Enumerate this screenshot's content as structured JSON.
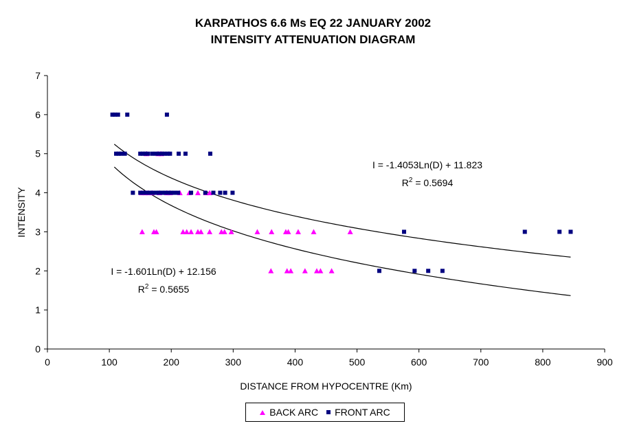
{
  "chart_data": {
    "type": "scatter",
    "title": "KARPATHOS 6.6 Ms EQ 22 JANUARY 2002",
    "subtitle": "INTENSITY ATTENUATION DIAGRAM",
    "xlabel": "DISTANCE FROM HYPOCENTRE (Km)",
    "ylabel": "INTENSITY",
    "xlim": [
      0,
      900
    ],
    "ylim": [
      0,
      7
    ],
    "xticks": [
      0,
      100,
      200,
      300,
      400,
      500,
      600,
      700,
      800,
      900
    ],
    "yticks": [
      0,
      1,
      2,
      3,
      4,
      5,
      6,
      7
    ],
    "grid": false,
    "legend_position": "bottom",
    "series": [
      {
        "name": "BACK ARC",
        "marker": "triangle",
        "color": "#ff00ff",
        "points": [
          [
            153,
            3
          ],
          [
            172,
            3
          ],
          [
            176,
            3
          ],
          [
            219,
            3
          ],
          [
            225,
            3
          ],
          [
            232,
            3
          ],
          [
            243,
            3
          ],
          [
            248,
            3
          ],
          [
            262,
            3
          ],
          [
            281,
            3
          ],
          [
            286,
            3
          ],
          [
            297,
            3
          ],
          [
            339,
            3
          ],
          [
            362,
            3
          ],
          [
            385,
            3
          ],
          [
            389,
            3
          ],
          [
            405,
            3
          ],
          [
            430,
            3
          ],
          [
            489,
            3
          ],
          [
            361,
            2
          ],
          [
            387,
            2
          ],
          [
            393,
            2
          ],
          [
            416,
            2
          ],
          [
            435,
            2
          ],
          [
            441,
            2
          ],
          [
            459,
            2
          ],
          [
            152,
            4
          ],
          [
            158,
            4
          ],
          [
            163,
            4
          ],
          [
            169,
            4
          ],
          [
            181,
            4
          ],
          [
            193,
            4
          ],
          [
            198,
            4
          ],
          [
            214,
            4
          ],
          [
            229,
            4
          ],
          [
            243,
            4
          ],
          [
            256,
            4
          ],
          [
            262,
            4
          ],
          [
            160,
            5
          ],
          [
            179,
            5
          ],
          [
            184,
            5
          ]
        ]
      },
      {
        "name": "FRONT ARC",
        "marker": "square",
        "color": "#000080",
        "points": [
          [
            105,
            6
          ],
          [
            109,
            6
          ],
          [
            114,
            6
          ],
          [
            129,
            6
          ],
          [
            193,
            6
          ],
          [
            111,
            5
          ],
          [
            115,
            5
          ],
          [
            119,
            5
          ],
          [
            125,
            5
          ],
          [
            150,
            5
          ],
          [
            154,
            5
          ],
          [
            158,
            5
          ],
          [
            162,
            5
          ],
          [
            169,
            5
          ],
          [
            175,
            5
          ],
          [
            180,
            5
          ],
          [
            185,
            5
          ],
          [
            189,
            5
          ],
          [
            194,
            5
          ],
          [
            198,
            5
          ],
          [
            212,
            5
          ],
          [
            223,
            5
          ],
          [
            263,
            5
          ],
          [
            138,
            4
          ],
          [
            150,
            4
          ],
          [
            155,
            4
          ],
          [
            160,
            4
          ],
          [
            165,
            4
          ],
          [
            170,
            4
          ],
          [
            176,
            4
          ],
          [
            180,
            4
          ],
          [
            186,
            4
          ],
          [
            190,
            4
          ],
          [
            195,
            4
          ],
          [
            200,
            4
          ],
          [
            205,
            4
          ],
          [
            211,
            4
          ],
          [
            232,
            4
          ],
          [
            255,
            4
          ],
          [
            268,
            4
          ],
          [
            279,
            4
          ],
          [
            287,
            4
          ],
          [
            299,
            4
          ],
          [
            576,
            3
          ],
          [
            771,
            3
          ],
          [
            827,
            3
          ],
          [
            845,
            3
          ],
          [
            536,
            2
          ],
          [
            593,
            2
          ],
          [
            615,
            2
          ],
          [
            638,
            2
          ]
        ]
      }
    ],
    "trendlines": [
      {
        "equation": "I = -1.4053Ln(D) + 11.823",
        "r2": "R² = 0.5694",
        "a": -1.4053,
        "b": 11.823,
        "x_range": [
          108,
          845
        ]
      },
      {
        "equation": "I = -1.601Ln(D) + 12.156",
        "r2": "R² = 0.5655",
        "a": -1.601,
        "b": 12.156,
        "x_range": [
          108,
          845
        ]
      }
    ]
  }
}
